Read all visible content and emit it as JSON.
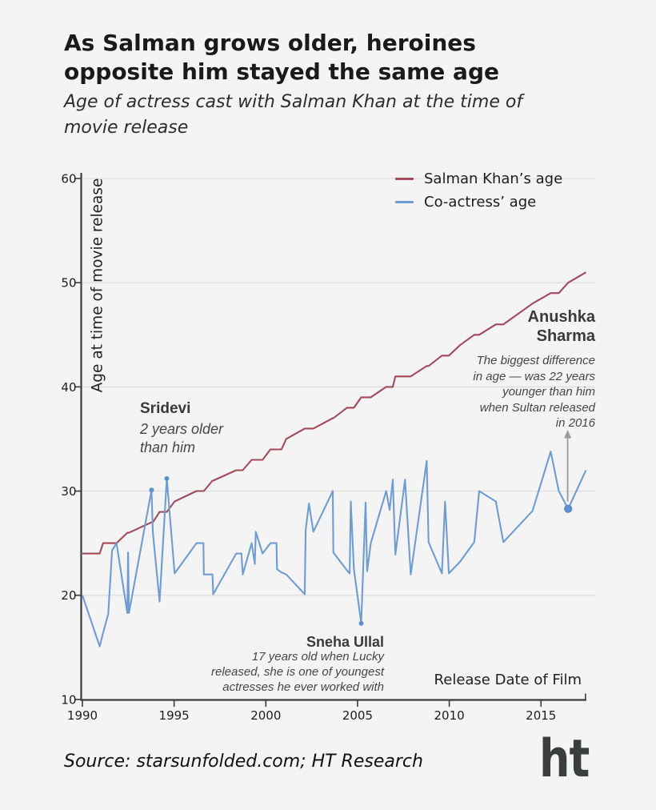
{
  "header": {
    "title_lines": [
      "As Salman grows older, heroines",
      "opposite him stayed the same age"
    ],
    "subtitle_lines": [
      "Age of actress cast with Salman Khan at the time of",
      "movie release"
    ]
  },
  "legend": {
    "items": [
      {
        "label": "Salman Khan’s age",
        "color": "#a4495c"
      },
      {
        "label": "Co-actress’ age",
        "color": "#6f9dd3"
      }
    ]
  },
  "chart_data": {
    "type": "line",
    "title": "As Salman grows older, heroines opposite him stayed the same age",
    "subtitle": "Age of actress cast with Salman Khan at the time of movie release",
    "xlabel": "Release Date of Film",
    "ylabel": "Age at time of movie release",
    "x_ticks": [
      1990,
      1995,
      2000,
      2005,
      2010,
      2015
    ],
    "y_ticks": [
      10,
      20,
      30,
      40,
      50,
      60
    ],
    "xlim": [
      1990,
      2017.45
    ],
    "ylim": [
      10,
      60
    ],
    "grid": "horizontal",
    "legend_position": "top-right",
    "series_names": [
      "Salman Khan’s age",
      "Co-actress’ age"
    ],
    "series_colors": {
      "salman": "#a4495c",
      "coactress": "#6f9dd3"
    },
    "points_format": [
      "release_year",
      "coactress_age",
      "salman_age"
    ],
    "points": [
      [
        1990.0,
        20.0,
        24
      ],
      [
        1990.94,
        15.1,
        24
      ],
      [
        1991.13,
        16.4,
        25
      ],
      [
        1991.41,
        18.2,
        25
      ],
      [
        1991.62,
        24.3,
        25
      ],
      [
        1991.86,
        25.0,
        25
      ],
      [
        1992.45,
        18.3,
        26
      ],
      [
        1992.49,
        24.1,
        26
      ],
      [
        1992.54,
        18.3,
        26
      ],
      [
        1993.77,
        30.1,
        27
      ],
      [
        1993.84,
        26.0,
        27
      ],
      [
        1994.21,
        19.4,
        28
      ],
      [
        1994.6,
        31.2,
        28
      ],
      [
        1995.03,
        22.1,
        29
      ],
      [
        1996.22,
        25.0,
        30
      ],
      [
        1996.6,
        25.0,
        30
      ],
      [
        1996.62,
        22.0,
        30
      ],
      [
        1997.09,
        22.0,
        31
      ],
      [
        1997.13,
        20.1,
        31
      ],
      [
        1998.38,
        24.0,
        32
      ],
      [
        1998.67,
        24.0,
        32
      ],
      [
        1998.74,
        22.0,
        32
      ],
      [
        1999.23,
        25.0,
        33
      ],
      [
        1999.4,
        23.0,
        33
      ],
      [
        1999.45,
        26.1,
        33
      ],
      [
        1999.82,
        24.0,
        33
      ],
      [
        2000.25,
        25.0,
        34
      ],
      [
        2000.58,
        25.0,
        34
      ],
      [
        2000.61,
        22.5,
        34
      ],
      [
        2000.85,
        22.2,
        34
      ],
      [
        2001.11,
        22.0,
        35
      ],
      [
        2002.12,
        20.1,
        36
      ],
      [
        2002.17,
        26.3,
        36
      ],
      [
        2002.35,
        28.8,
        36
      ],
      [
        2002.59,
        26.1,
        36
      ],
      [
        2003.65,
        30.0,
        37
      ],
      [
        2003.68,
        24.1,
        37
      ],
      [
        2004.42,
        22.4,
        38
      ],
      [
        2004.57,
        22.1,
        38
      ],
      [
        2004.63,
        29.0,
        38
      ],
      [
        2004.8,
        22.5,
        38
      ],
      [
        2005.2,
        17.3,
        39
      ],
      [
        2005.44,
        28.9,
        39
      ],
      [
        2005.52,
        22.3,
        39
      ],
      [
        2005.72,
        25.0,
        39
      ],
      [
        2006.56,
        30.0,
        40
      ],
      [
        2006.75,
        28.2,
        40
      ],
      [
        2006.92,
        31.1,
        40
      ],
      [
        2007.06,
        23.9,
        41
      ],
      [
        2007.59,
        31.1,
        41
      ],
      [
        2007.9,
        22.0,
        41
      ],
      [
        2008.77,
        32.9,
        42
      ],
      [
        2008.87,
        25.1,
        42
      ],
      [
        2009.6,
        22.1,
        43
      ],
      [
        2009.77,
        29.0,
        43
      ],
      [
        2009.98,
        22.1,
        43
      ],
      [
        2010.58,
        23.2,
        44
      ],
      [
        2011.36,
        25.1,
        45
      ],
      [
        2011.63,
        30.0,
        45
      ],
      [
        2012.54,
        29.0,
        46
      ],
      [
        2012.95,
        25.1,
        46
      ],
      [
        2014.54,
        28.1,
        48
      ],
      [
        2015.53,
        33.8,
        49
      ],
      [
        2015.97,
        30.0,
        49
      ],
      [
        2016.48,
        28.3,
        50
      ],
      [
        2017.45,
        32.0,
        51
      ]
    ],
    "highlight_dots": [
      {
        "name": "Sridevi",
        "year": 1993.77,
        "age": 30.1,
        "r": 3
      },
      {
        "name": "Sridevi",
        "year": 1994.6,
        "age": 31.2,
        "r": 3
      },
      {
        "name": "Sneha Ullal",
        "year": 2005.2,
        "age": 17.3,
        "r": 3
      },
      {
        "name": "Anushka Sharma",
        "year": 2016.48,
        "age": 28.3,
        "r": 5.2
      }
    ],
    "arrow": {
      "at_year": 2016.48,
      "from_age": 29.0,
      "to_age": 35.8,
      "direction": "up",
      "color": "#9a9a9a"
    }
  },
  "annotations": {
    "sridevi": {
      "name": "Sridevi",
      "text_lines": [
        "2 years older",
        "than him"
      ]
    },
    "sneha": {
      "name": "Sneha Ullal",
      "text_lines": [
        "17 years old when Lucky",
        "released, she is one of youngest",
        "actresses he ever worked with"
      ]
    },
    "anushka": {
      "name_lines": [
        "Anushka",
        "Sharma"
      ],
      "text_lines": [
        "The biggest difference",
        "in age — was 22 years",
        "younger than him",
        "when Sultan released",
        "in 2016"
      ]
    }
  },
  "footer": {
    "source": "Source: starsunfolded.com; HT Research",
    "logo_text": "ht"
  },
  "style_colors": {
    "background": "#f5f4f5",
    "grid": "#e0dfe0",
    "axis": "#3c3c3c",
    "tick_text": "#1d1d1d",
    "dot_fill": "#5d90ca"
  }
}
